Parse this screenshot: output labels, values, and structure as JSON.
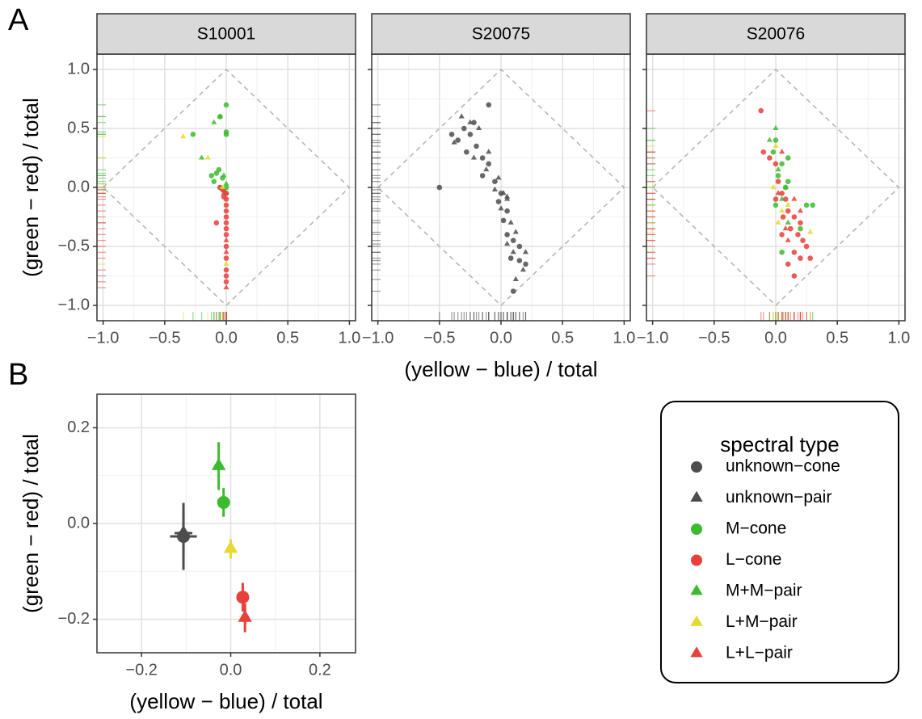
{
  "chart_data": [
    {
      "type": "scatter",
      "panel_label": "A",
      "title": "S10001",
      "ylabel": "(green − red) / total",
      "xlim": [
        -1.05,
        1.05
      ],
      "ylim": [
        -1.13,
        1.13
      ],
      "xticks": [
        {
          "value": -1,
          "label": "−1.0"
        },
        {
          "value": -0.5,
          "label": "−0.5"
        },
        {
          "value": 0,
          "label": "0.0"
        },
        {
          "value": 0.5,
          "label": "0.5"
        },
        {
          "value": 1,
          "label": "1.0"
        }
      ],
      "yticks": [
        {
          "value": -1,
          "label": "−1.0"
        },
        {
          "value": -0.5,
          "label": "−0.5"
        },
        {
          "value": 0,
          "label": "0.0"
        },
        {
          "value": 0.5,
          "label": "0.5"
        },
        {
          "value": 1,
          "label": "1.0"
        }
      ],
      "grid": true,
      "rug": true,
      "series": [
        {
          "marker": "circle",
          "color": "#3dbb2e",
          "x": [
            0,
            0,
            -0.27,
            -0.05,
            -0.08,
            -0.1,
            -0.05,
            -0.02,
            -0.12,
            0,
            -0.03,
            0,
            -0.06,
            0
          ],
          "values": [
            0.7,
            0.47,
            0.45,
            0.6,
            0.12,
            0.05,
            0,
            -0.02,
            0.1,
            0.45,
            0.08,
            -0.05,
            0.15,
            0
          ]
        },
        {
          "marker": "circle",
          "color": "#e8403a",
          "x": [
            -0.08,
            0,
            0,
            0,
            0,
            0,
            0,
            0,
            0,
            0,
            0,
            -0.03,
            -0.05,
            0,
            -0.02,
            0,
            0
          ],
          "values": [
            -0.3,
            -0.05,
            -0.1,
            -0.15,
            -0.2,
            -0.25,
            -0.3,
            -0.4,
            -0.5,
            -0.6,
            -0.75,
            -0.02,
            0,
            -0.35,
            -0.08,
            -0.7,
            -0.8
          ]
        },
        {
          "marker": "triangle",
          "color": "#3dbb2e",
          "x": [
            -0.1,
            -0.05,
            -0.2,
            -0.02,
            0
          ],
          "values": [
            0.55,
            0.6,
            0.25,
            0.1,
            0.03
          ]
        },
        {
          "marker": "triangle",
          "color": "#e6d930",
          "x": [
            -0.35,
            -0.15,
            0,
            -0.03
          ],
          "values": [
            0.43,
            0.25,
            -0.65,
            0
          ]
        },
        {
          "marker": "triangle",
          "color": "#e8403a",
          "x": [
            0,
            -0.02,
            0,
            0
          ],
          "values": [
            -0.55,
            -0.05,
            -0.85,
            -0.45
          ]
        }
      ]
    },
    {
      "type": "scatter",
      "title": "S20075",
      "xlabel": "(yellow − blue) / total",
      "xlim": [
        -1.05,
        1.05
      ],
      "ylim": [
        -1.13,
        1.13
      ],
      "xticks": [
        {
          "value": -1,
          "label": "−1.0"
        },
        {
          "value": -0.5,
          "label": "−0.5"
        },
        {
          "value": 0,
          "label": "0.0"
        },
        {
          "value": 0.5,
          "label": "0.5"
        },
        {
          "value": 1,
          "label": "1.0"
        }
      ],
      "yticks": [
        -1,
        -0.5,
        0,
        0.5,
        1
      ],
      "grid": true,
      "rug": true,
      "series": [
        {
          "marker": "circle",
          "color": "#4d4d4d",
          "x": [
            -0.5,
            -0.4,
            -0.35,
            -0.3,
            -0.25,
            -0.2,
            -0.28,
            -0.15,
            -0.1,
            -0.15,
            -0.05,
            0,
            -0.02,
            0.05,
            0.02,
            0.05,
            0.1,
            0.15,
            0.08,
            0.15,
            0.2,
            0.1,
            -0.1,
            -0.22
          ],
          "values": [
            0,
            0.45,
            0.4,
            0.5,
            0.45,
            0.35,
            0.3,
            0.25,
            0.2,
            0.1,
            0.05,
            -0.05,
            -0.12,
            -0.2,
            -0.28,
            -0.4,
            -0.45,
            -0.5,
            -0.6,
            -0.62,
            -0.65,
            -0.88,
            0.7,
            0.55
          ]
        },
        {
          "marker": "triangle",
          "color": "#4d4d4d",
          "x": [
            -0.32,
            -0.25,
            -0.18,
            -0.38,
            -0.22,
            -0.1,
            -0.12,
            -0.05,
            0.02,
            0.05,
            0,
            0.08,
            0.05,
            0.12,
            0.1,
            0.18,
            0.2,
            0.12,
            -0.02,
            0.05
          ],
          "values": [
            0.6,
            0.55,
            0.5,
            0.38,
            0.25,
            0.3,
            0.15,
            -0.02,
            -0.05,
            -0.1,
            -0.18,
            -0.3,
            -0.48,
            -0.38,
            -0.55,
            -0.7,
            -0.55,
            -0.78,
            0.08,
            -0.08
          ]
        }
      ]
    },
    {
      "type": "scatter",
      "title": "S20076",
      "xlim": [
        -1.05,
        1.05
      ],
      "ylim": [
        -1.13,
        1.13
      ],
      "xticks": [
        {
          "value": -1,
          "label": "−1.0"
        },
        {
          "value": -0.5,
          "label": "−0.5"
        },
        {
          "value": 0,
          "label": "0.0"
        },
        {
          "value": 0.5,
          "label": "0.5"
        },
        {
          "value": 1,
          "label": "1.0"
        }
      ],
      "yticks": [
        -1,
        -0.5,
        0,
        0.5,
        1
      ],
      "grid": true,
      "rug": true,
      "series": [
        {
          "marker": "circle",
          "color": "#3dbb2e",
          "x": [
            0,
            -0.02,
            0.05,
            0.1,
            0.02,
            0.08,
            0.25,
            0.3,
            0.2,
            0.05,
            0,
            0.1
          ],
          "values": [
            0.4,
            0.3,
            0.2,
            0.25,
            0.1,
            0,
            -0.15,
            -0.15,
            -0.35,
            -0.55,
            -0.15,
            0.05
          ]
        },
        {
          "marker": "circle",
          "color": "#e8403a",
          "x": [
            -0.12,
            -0.1,
            -0.05,
            0,
            0.02,
            0.05,
            0.08,
            0.1,
            0.15,
            0.2,
            0.12,
            0.18,
            0.22,
            0.25,
            0.15,
            0.2,
            0.28,
            0.1,
            0.15,
            0.05,
            0,
            0.06
          ],
          "values": [
            0.65,
            0.3,
            0.25,
            0.2,
            0.05,
            -0.05,
            -0.1,
            -0.2,
            -0.25,
            -0.3,
            -0.35,
            -0.4,
            -0.45,
            -0.5,
            -0.55,
            -0.6,
            -0.6,
            -0.65,
            -0.75,
            -0.4,
            -0.1,
            -0.25
          ]
        },
        {
          "marker": "triangle",
          "color": "#3dbb2e",
          "x": [
            0,
            -0.05,
            0.02,
            0.05,
            0.08,
            0.1
          ],
          "values": [
            0.5,
            0.4,
            0.15,
            -0.1,
            0,
            -0.3
          ]
        },
        {
          "marker": "triangle",
          "color": "#e6d930",
          "x": [
            0,
            0.05,
            0.02,
            0.28,
            0.1,
            -0.02
          ],
          "values": [
            0.35,
            -0.2,
            -0.3,
            -0.38,
            -0.15,
            0
          ]
        },
        {
          "marker": "triangle",
          "color": "#e8403a",
          "x": [
            0.05,
            0.15,
            0.1,
            0.2,
            0.08,
            0.02
          ],
          "values": [
            0.3,
            -0.1,
            -0.45,
            -0.2,
            -0.35,
            -0.05
          ]
        }
      ]
    },
    {
      "type": "errorbar",
      "panel_label": "B",
      "xlabel": "(yellow − blue) / total",
      "ylabel": "(green − red) / total",
      "xlim": [
        -0.3,
        0.28
      ],
      "ylim": [
        -0.27,
        0.27
      ],
      "xticks": [
        {
          "value": -0.2,
          "label": "−0.2"
        },
        {
          "value": 0,
          "label": "0.0"
        },
        {
          "value": 0.2,
          "label": "0.2"
        }
      ],
      "yticks": [
        {
          "value": -0.2,
          "label": "−0.2"
        },
        {
          "value": 0,
          "label": "0.0"
        },
        {
          "value": 0.2,
          "label": "0.2"
        }
      ],
      "grid": true,
      "legend_title": "spectral type",
      "legend": "right",
      "series": [
        {
          "name": "unknown−cone",
          "marker": "circle",
          "color": "#4d4d4d",
          "x": [
            -0.106
          ],
          "values": [
            -0.027
          ],
          "x_err": [
            0.03
          ],
          "y_err": [
            0.07
          ]
        },
        {
          "name": "unknown−pair",
          "marker": "triangle",
          "color": "#4d4d4d",
          "x": [
            -0.106
          ],
          "values": [
            -0.02
          ],
          "x_err": [
            0.02
          ],
          "y_err": [
            0.05
          ]
        },
        {
          "name": "M−cone",
          "marker": "circle",
          "color": "#3dbb2e",
          "x": [
            -0.016
          ],
          "values": [
            0.044
          ],
          "x_err": [
            0.005
          ],
          "y_err": [
            0.03
          ]
        },
        {
          "name": "L−cone",
          "marker": "circle",
          "color": "#e8403a",
          "x": [
            0.027
          ],
          "values": [
            -0.154
          ],
          "x_err": [
            0.005
          ],
          "y_err": [
            0.03
          ]
        },
        {
          "name": "M+M−pair",
          "marker": "triangle",
          "color": "#3dbb2e",
          "x": [
            -0.027
          ],
          "values": [
            0.12
          ],
          "x_err": [
            0.01
          ],
          "y_err": [
            0.05
          ]
        },
        {
          "name": "L+M−pair",
          "marker": "triangle",
          "color": "#e6d930",
          "x": [
            0
          ],
          "values": [
            -0.053
          ],
          "x_err": [
            0.005
          ],
          "y_err": [
            0.02
          ]
        },
        {
          "name": "L+L−pair",
          "marker": "triangle",
          "color": "#e8403a",
          "x": [
            0.032
          ],
          "values": [
            -0.197
          ],
          "x_err": [
            0.005
          ],
          "y_err": [
            0.03
          ]
        }
      ]
    }
  ]
}
